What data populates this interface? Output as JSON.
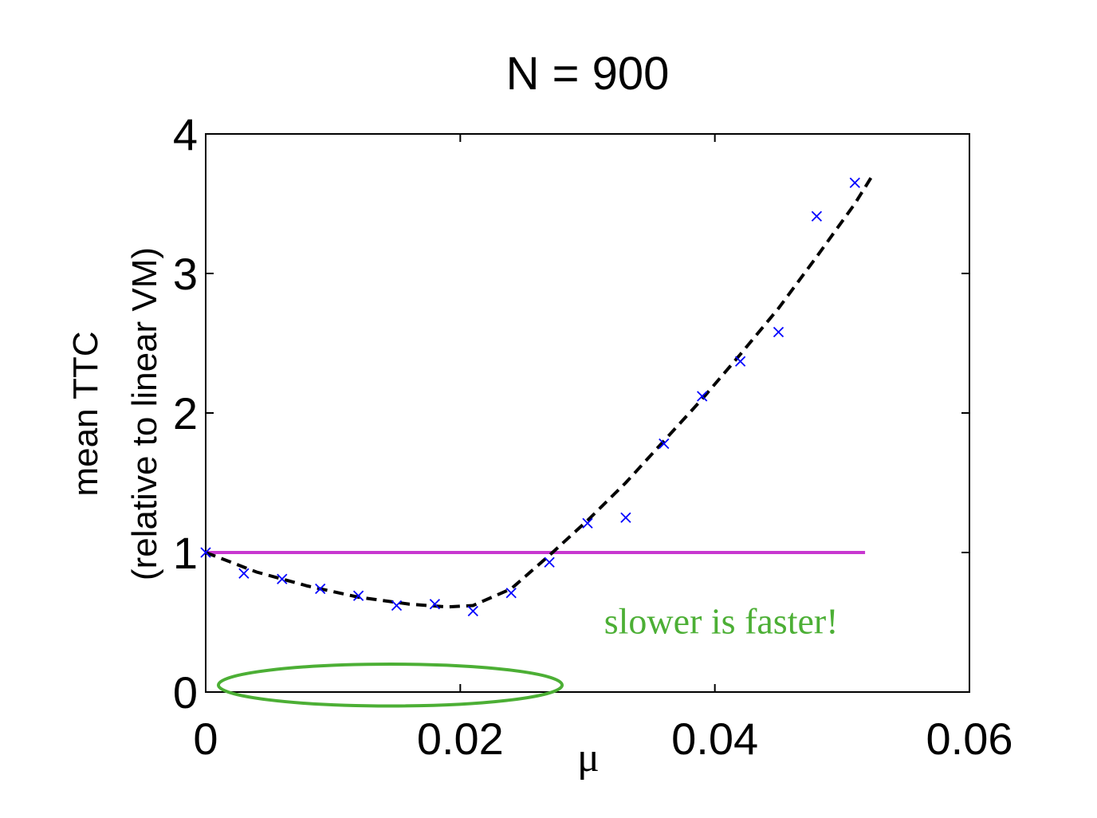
{
  "chart_data": {
    "type": "scatter",
    "title": "N = 900",
    "xlabel": "μ",
    "ylabel_line1": "mean TTC",
    "ylabel_line2": "(relative to linear VM)",
    "xlim": [
      0,
      0.06
    ],
    "ylim": [
      0,
      4
    ],
    "xticks": [
      0,
      0.02,
      0.04,
      0.06
    ],
    "xtick_labels": [
      "0",
      "0.02",
      "0.04",
      "0.06"
    ],
    "yticks": [
      0,
      1,
      2,
      3,
      4
    ],
    "ytick_labels": [
      "0",
      "1",
      "2",
      "3",
      "4"
    ],
    "grid": false,
    "annotation": "slower is faster!",
    "series": [
      {
        "kind": "scatter",
        "marker": "x",
        "color": "#0000ff",
        "x": [
          0,
          0.003,
          0.006,
          0.009,
          0.012,
          0.015,
          0.018,
          0.021,
          0.024,
          0.027,
          0.03,
          0.033,
          0.036,
          0.039,
          0.042,
          0.045,
          0.048,
          0.051
        ],
        "y": [
          1.0,
          0.85,
          0.81,
          0.74,
          0.69,
          0.62,
          0.63,
          0.58,
          0.71,
          0.93,
          1.21,
          1.25,
          1.78,
          2.12,
          2.37,
          2.58,
          3.41,
          3.65
        ]
      },
      {
        "kind": "line",
        "style": "dashed",
        "color": "#000000",
        "x": [
          0,
          0.004,
          0.008,
          0.012,
          0.016,
          0.019,
          0.021,
          0.024,
          0.027,
          0.03,
          0.033,
          0.036,
          0.039,
          0.042,
          0.045,
          0.048,
          0.051,
          0.0525
        ],
        "y": [
          1.0,
          0.86,
          0.76,
          0.68,
          0.63,
          0.61,
          0.62,
          0.74,
          0.98,
          1.23,
          1.5,
          1.8,
          2.1,
          2.42,
          2.75,
          3.12,
          3.5,
          3.72
        ]
      },
      {
        "kind": "line",
        "style": "solid",
        "color": "#c837d0",
        "x": [
          0,
          0.0518
        ],
        "y": [
          1,
          1
        ]
      }
    ],
    "highlight_ellipse": {
      "color": "#4caf35",
      "x_range": [
        0.001,
        0.028
      ],
      "y_center": 0.05,
      "y_half_height": 0.15
    },
    "annotation_color": "#4caf35",
    "annotation_position": {
      "x": 0.0405,
      "y": 0.42
    }
  }
}
